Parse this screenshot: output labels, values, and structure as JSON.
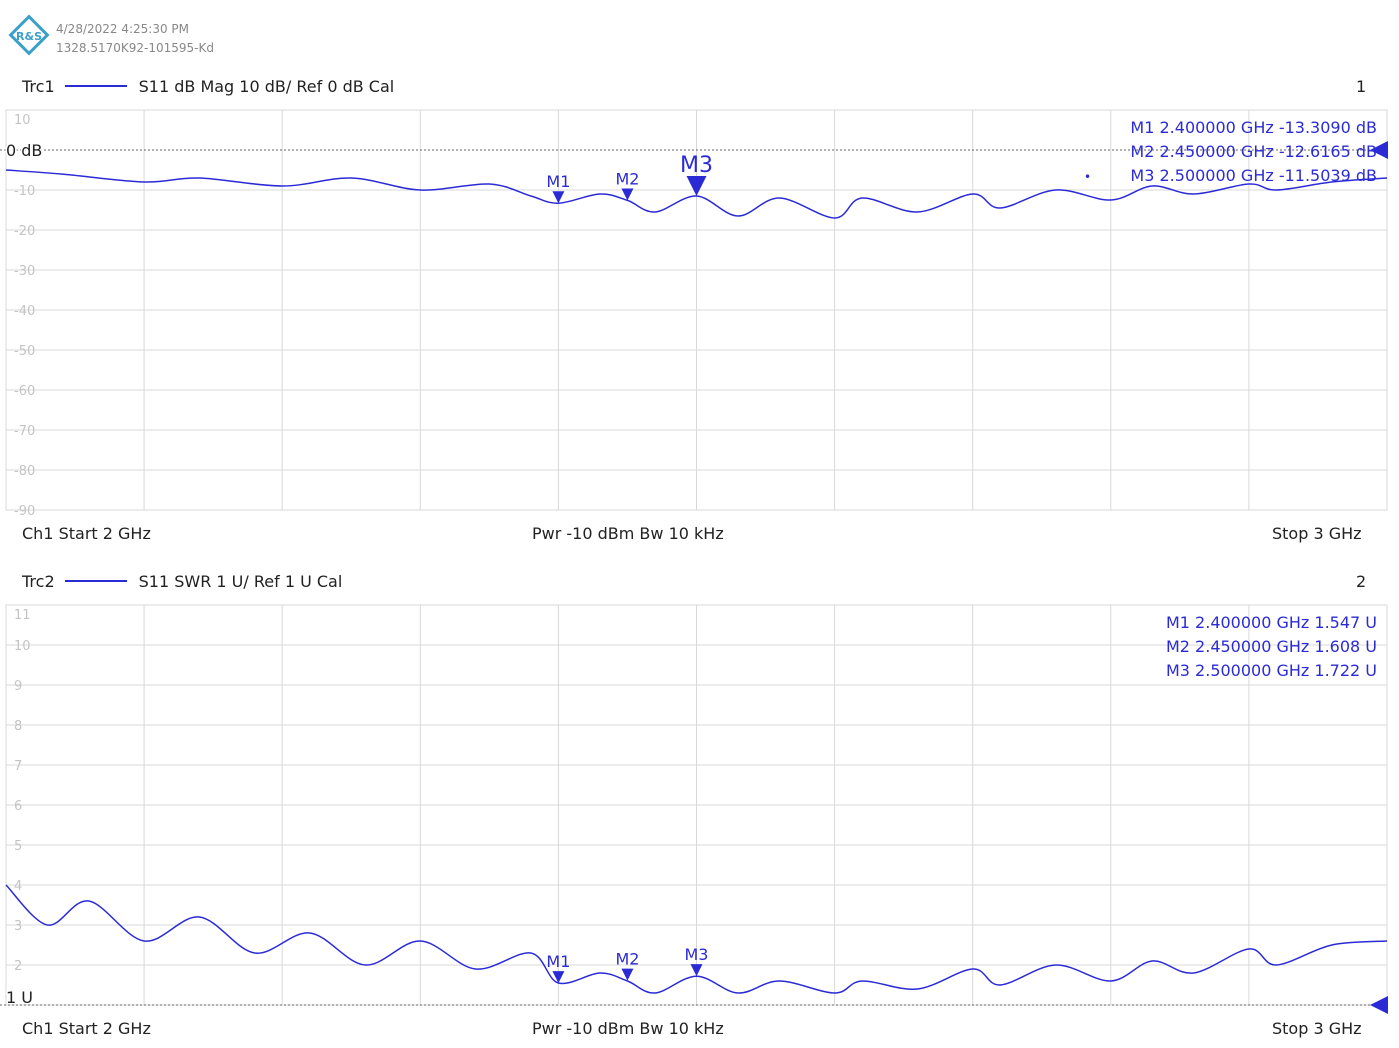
{
  "header": {
    "timestamp": "4/28/2022 4:25:30 PM",
    "instrument_id": "1328.5170K92-101595-Kd",
    "logo": "R&S"
  },
  "chart_data": [
    {
      "type": "line",
      "trace_label": "Trc1",
      "trace_desc": "S11  dB Mag  10 dB/ Ref 0 dB  Cal",
      "window_number": "1",
      "ref_label": "0 dB",
      "xlim": [
        2.0,
        3.0
      ],
      "ylim": [
        -90,
        10
      ],
      "ytick_labels": [
        "10",
        "-10",
        "-20",
        "-30",
        "-40",
        "-50",
        "-60",
        "-70",
        "-80",
        "-90"
      ],
      "ytick_values": [
        10,
        -10,
        -20,
        -30,
        -40,
        -50,
        -60,
        -70,
        -80,
        -90
      ],
      "ref_value": 0,
      "grid": true,
      "color": "#2b2bd6",
      "series": [
        {
          "x": [
            2.0,
            2.04,
            2.1,
            2.14,
            2.2,
            2.25,
            2.3,
            2.35,
            2.38,
            2.4,
            2.43,
            2.45,
            2.47,
            2.5,
            2.53,
            2.56,
            2.6,
            2.62,
            2.66,
            2.7,
            2.72,
            2.76,
            2.8,
            2.83,
            2.86,
            2.9,
            2.92,
            2.96,
            3.0
          ],
          "y": [
            -5,
            -6,
            -8,
            -7,
            -9,
            -7,
            -10,
            -8.5,
            -11.5,
            -13.3,
            -11,
            -12.6,
            -15.5,
            -11.5,
            -16.5,
            -12,
            -17,
            -12,
            -15.5,
            -11,
            -14.5,
            -10,
            -12.5,
            -9,
            -11,
            -8.5,
            -10,
            -8,
            -7
          ]
        }
      ],
      "markers": [
        {
          "name": "M1",
          "x": 2.4,
          "y": -13.309
        },
        {
          "name": "M2",
          "x": 2.45,
          "y": -12.6165
        },
        {
          "name": "M3",
          "x": 2.5,
          "y": -11.5039
        }
      ],
      "marker_table": [
        {
          "name": "M1",
          "freq": "2.400000 GHz",
          "value": "-13.3090 dB"
        },
        {
          "name": "M2",
          "freq": "2.450000 GHz",
          "value": "-12.6165 dB"
        },
        {
          "name": "M3",
          "freq": "2.500000 GHz",
          "value": "-11.5039 dB",
          "active": "•"
        }
      ],
      "channel": {
        "start": "Ch1  Start  2 GHz",
        "middle": "Pwr  -10 dBm  Bw  10 kHz",
        "stop": "Stop  3 GHz"
      }
    },
    {
      "type": "line",
      "trace_label": "Trc2",
      "trace_desc": "S11  SWR  1 U/ Ref 1 U  Cal",
      "window_number": "2",
      "ref_label": "1 U",
      "xlim": [
        2.0,
        3.0
      ],
      "ylim": [
        1,
        11
      ],
      "ytick_labels": [
        "11",
        "10",
        "9",
        "8",
        "7",
        "6",
        "5",
        "4",
        "3",
        "2"
      ],
      "ytick_values": [
        11,
        10,
        9,
        8,
        7,
        6,
        5,
        4,
        3,
        2
      ],
      "ref_value": 1,
      "grid": true,
      "color": "#2b2bd6",
      "series": [
        {
          "x": [
            2.0,
            2.03,
            2.06,
            2.1,
            2.14,
            2.18,
            2.22,
            2.26,
            2.3,
            2.34,
            2.38,
            2.4,
            2.43,
            2.45,
            2.47,
            2.5,
            2.53,
            2.56,
            2.6,
            2.62,
            2.66,
            2.7,
            2.72,
            2.76,
            2.8,
            2.83,
            2.86,
            2.9,
            2.92,
            2.96,
            3.0
          ],
          "y": [
            4.0,
            3.0,
            3.6,
            2.6,
            3.2,
            2.3,
            2.8,
            2.0,
            2.6,
            1.9,
            2.3,
            1.55,
            1.8,
            1.6,
            1.3,
            1.72,
            1.3,
            1.6,
            1.3,
            1.6,
            1.4,
            1.9,
            1.5,
            2.0,
            1.6,
            2.1,
            1.8,
            2.4,
            2.0,
            2.5,
            2.6
          ]
        }
      ],
      "markers": [
        {
          "name": "M1",
          "x": 2.4,
          "y": 1.547
        },
        {
          "name": "M2",
          "x": 2.45,
          "y": 1.608
        },
        {
          "name": "M3",
          "x": 2.5,
          "y": 1.722
        }
      ],
      "marker_table": [
        {
          "name": "M1",
          "freq": "2.400000 GHz",
          "value": "1.547 U"
        },
        {
          "name": "M2",
          "freq": "2.450000 GHz",
          "value": "1.608 U"
        },
        {
          "name": "M3",
          "freq": "2.500000 GHz",
          "value": "1.722 U"
        }
      ],
      "channel": {
        "start": "Ch1  Start  2 GHz",
        "middle": "Pwr  -10 dBm  Bw  10 kHz",
        "stop": "Stop  3 GHz"
      }
    }
  ]
}
